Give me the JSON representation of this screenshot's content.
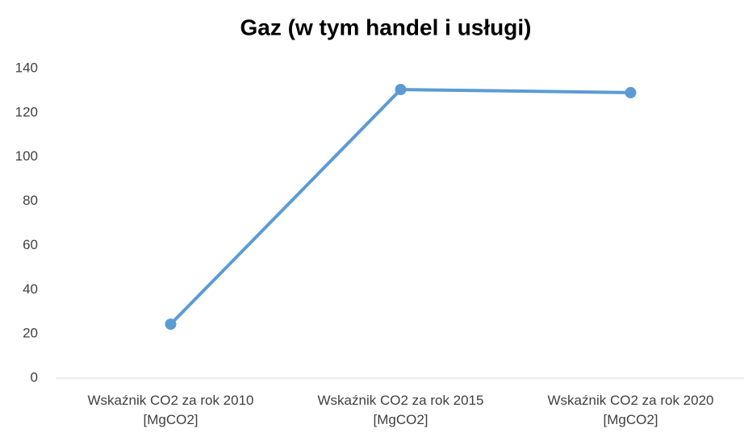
{
  "chart_data": {
    "type": "line",
    "title": "Gaz (w tym handel i usługi)",
    "categories": [
      "Wskaźnik CO2 za rok 2010 [MgCO2]",
      "Wskaźnik CO2 za rok 2015 [MgCO2]",
      "Wskaźnik CO2 za rok 2020 [MgCO2]"
    ],
    "series": [
      {
        "name": "Gaz (w tym handel i usługi)",
        "color": "#5b9bd5",
        "values": [
          24.4,
          130.5,
          129.1
        ]
      }
    ],
    "ylim": [
      0,
      140
    ],
    "yticks": [
      0,
      20,
      40,
      60,
      80,
      100,
      120,
      140
    ],
    "grid": false
  }
}
